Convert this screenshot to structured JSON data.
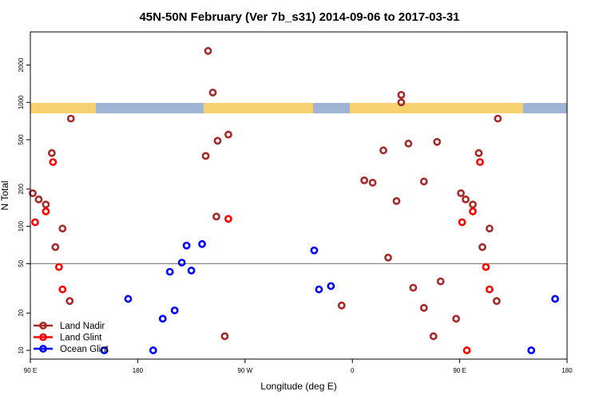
{
  "chart_data": {
    "type": "scatter",
    "title": "45N-50N February (Ver 7b_s31)   2014-09-06 to 2017-03-31",
    "xlabel": "Longitude (deg E)",
    "ylabel": "N Total",
    "x_ticks": [
      {
        "value": 0,
        "label": "90 E"
      },
      {
        "value": 90,
        "label": "180"
      },
      {
        "value": 180,
        "label": "90 W"
      },
      {
        "value": 270,
        "label": "0"
      },
      {
        "value": 360,
        "label": "90 E"
      },
      {
        "value": 450,
        "label": "180"
      }
    ],
    "y_ticks": [
      10,
      20,
      50,
      100,
      200,
      500,
      1000,
      2000
    ],
    "xlim": [
      0,
      450
    ],
    "ylim": [
      8.5,
      3700
    ],
    "y_scale": "log",
    "reference_line": 50,
    "legend_position": "bottom-left",
    "colors": {
      "land": "#f7d26f",
      "ocean": "#a0b4d6",
      "axis": "#000000",
      "reference_line": "#808080"
    },
    "series": [
      {
        "name": "Land Nadir",
        "color": "#a52a2a",
        "points": [
          [
            2,
            185
          ],
          [
            7,
            165
          ],
          [
            13,
            150
          ],
          [
            18,
            390
          ],
          [
            21,
            68
          ],
          [
            27,
            96
          ],
          [
            33,
            25
          ],
          [
            34,
            740
          ],
          [
            149,
            2600
          ],
          [
            153,
            1200
          ],
          [
            147,
            370
          ],
          [
            157,
            490
          ],
          [
            166,
            550
          ],
          [
            163,
            13
          ],
          [
            156,
            120
          ],
          [
            261,
            23
          ],
          [
            280,
            235
          ],
          [
            287,
            225
          ],
          [
            296,
            410
          ],
          [
            300,
            56
          ],
          [
            307,
            160
          ],
          [
            311,
            1000
          ],
          [
            311,
            1150
          ],
          [
            317,
            465
          ],
          [
            321,
            32
          ],
          [
            330,
            22
          ],
          [
            330,
            230
          ],
          [
            338,
            13
          ],
          [
            341,
            480
          ],
          [
            344,
            36
          ],
          [
            357,
            18
          ],
          [
            361,
            185
          ],
          [
            365,
            165
          ],
          [
            371,
            150
          ],
          [
            376,
            390
          ],
          [
            379,
            68
          ],
          [
            385,
            96
          ],
          [
            391,
            25
          ],
          [
            392,
            740
          ]
        ]
      },
      {
        "name": "Land Glint",
        "color": "#ff0000",
        "points": [
          [
            4,
            108
          ],
          [
            13,
            132
          ],
          [
            19,
            330
          ],
          [
            24,
            47
          ],
          [
            27,
            31
          ],
          [
            166,
            115
          ],
          [
            362,
            108
          ],
          [
            366,
            10
          ],
          [
            371,
            132
          ],
          [
            377,
            330
          ],
          [
            382,
            47
          ],
          [
            385,
            31
          ]
        ]
      },
      {
        "name": "Ocean Glint",
        "color": "#0000ff",
        "points": [
          [
            62,
            10
          ],
          [
            82,
            26
          ],
          [
            103,
            10
          ],
          [
            111,
            18
          ],
          [
            117,
            43
          ],
          [
            121,
            21
          ],
          [
            127,
            51
          ],
          [
            131,
            70
          ],
          [
            135,
            44
          ],
          [
            144,
            72
          ],
          [
            238,
            64
          ],
          [
            242,
            31
          ],
          [
            252,
            33
          ],
          [
            420,
            10
          ],
          [
            440,
            26
          ]
        ]
      }
    ]
  }
}
